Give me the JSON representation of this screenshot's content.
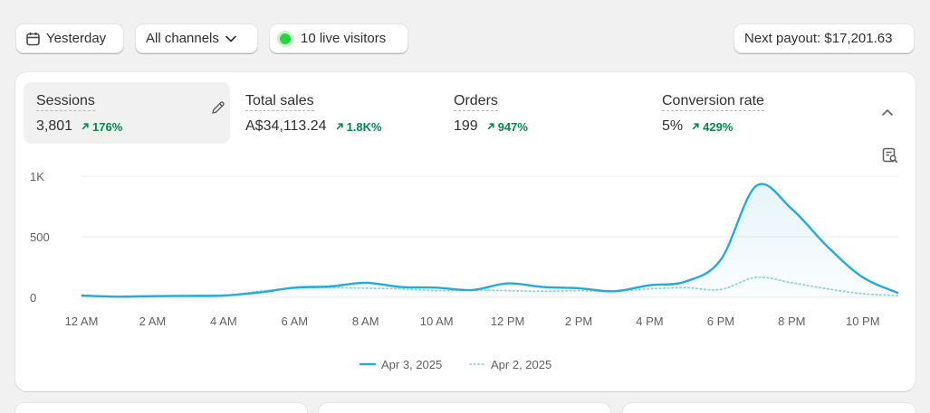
{
  "filters": {
    "date_label": "Yesterday",
    "channels_label": "All channels",
    "live_label": "10 live visitors",
    "payout_label": "Next payout: $17,201.63"
  },
  "metrics": [
    {
      "label": "Sessions",
      "value": "3,801",
      "change": "176%"
    },
    {
      "label": "Total sales",
      "value": "A$34,113.24",
      "change": "1.8K%"
    },
    {
      "label": "Orders",
      "value": "199",
      "change": "947%"
    },
    {
      "label": "Conversion rate",
      "value": "5%",
      "change": "429%"
    }
  ],
  "colors": {
    "current": "#26aad9",
    "previous": "#8ed3e4",
    "positive": "#008a4a",
    "live": "#29d33b"
  },
  "icons": {
    "date": "calendar-icon",
    "channels": "chevron-down-icon",
    "edit": "pencil-icon",
    "collapse": "chevron-up-icon",
    "report": "report-search-icon"
  },
  "chart_data": {
    "type": "line",
    "x": [
      "12 AM",
      "1 AM",
      "2 AM",
      "3 AM",
      "4 AM",
      "5 AM",
      "6 AM",
      "7 AM",
      "8 AM",
      "9 AM",
      "10 AM",
      "11 AM",
      "12 PM",
      "1 PM",
      "2 PM",
      "3 PM",
      "4 PM",
      "5 PM",
      "6 PM",
      "7 PM",
      "8 PM",
      "9 PM",
      "10 PM",
      "11 PM"
    ],
    "x_tick_labels": [
      "12 AM",
      "2 AM",
      "4 AM",
      "6 AM",
      "8 AM",
      "10 AM",
      "12 PM",
      "2 PM",
      "4 PM",
      "6 PM",
      "8 PM",
      "10 PM"
    ],
    "y_tick_labels": [
      "1K",
      "500",
      "0"
    ],
    "ylim": [
      0,
      1000
    ],
    "grid": true,
    "legend_position": "bottom-center",
    "series": [
      {
        "name": "Apr 3, 2025",
        "style": "solid",
        "values": [
          15,
          5,
          10,
          12,
          15,
          40,
          80,
          90,
          120,
          85,
          80,
          60,
          115,
          85,
          75,
          50,
          100,
          130,
          310,
          920,
          730,
          420,
          165,
          35
        ]
      },
      {
        "name": "Apr 2, 2025",
        "style": "dotted",
        "values": [
          15,
          5,
          8,
          10,
          12,
          50,
          75,
          80,
          75,
          70,
          55,
          60,
          55,
          50,
          55,
          50,
          70,
          80,
          65,
          165,
          120,
          70,
          30,
          15
        ]
      }
    ]
  }
}
